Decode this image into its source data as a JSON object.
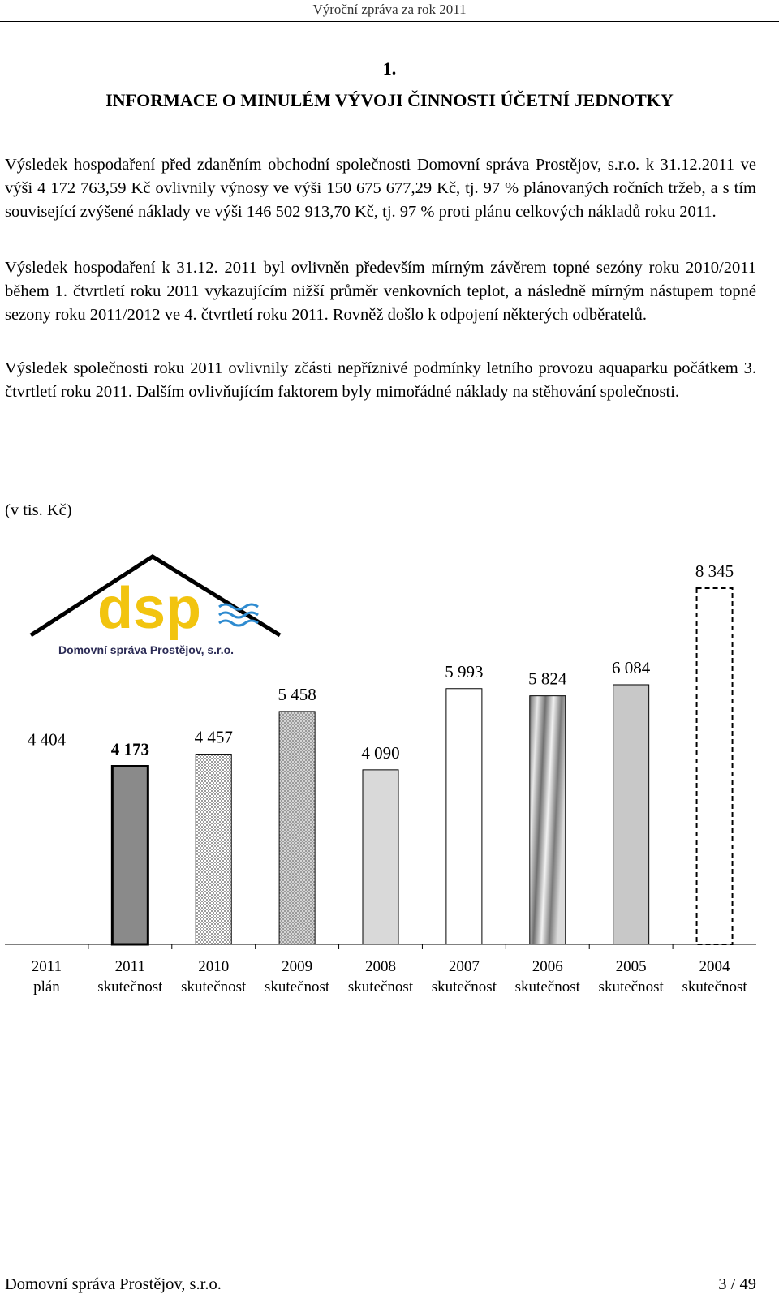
{
  "header": {
    "title": "Výroční zpráva za rok 2011"
  },
  "section": {
    "number": "1.",
    "title": "INFORMACE O MINULÉM VÝVOJI ČINNOSTI ÚČETNÍ JEDNOTKY"
  },
  "paragraphs": [
    "Výsledek hospodaření před zdaněním obchodní společnosti Domovní správa Prostějov, s.r.o. k 31.12.2011 ve výši 4 172 763,59 Kč ovlivnily výnosy ve výši 150 675 677,29 Kč, tj. 97 % plánovaných ročních tržeb, a s tím související zvýšené náklady ve výši 146 502 913,70 Kč, tj. 97 % proti plánu celkových nákladů roku 2011.",
    "Výsledek hospodaření k 31.12. 2011 byl ovlivněn především mírným závěrem topné sezóny roku 2010/2011 během 1. čtvrtletí roku 2011 vykazujícím nižší průměr venkovních teplot, a následně mírným nástupem topné sezony roku 2011/2012 ve 4. čtvrtletí roku 2011. Rovněž došlo k odpojení některých odběratelů.",
    "Výsledek společnosti roku 2011 ovlivnily zčásti nepříznivé podmínky letního provozu aquaparku počátkem 3. čtvrtletí roku 2011. Dalším ovlivňujícím faktorem byly mimořádné náklady na stěhování společnosti."
  ],
  "unit_label": "(v tis. Kč)",
  "logo": {
    "text": "dsp",
    "company": "Domovní správa Prostějov, s.r.o."
  },
  "colors": {
    "logo_yellow": "#f2c40f",
    "logo_blue": "#2e8bd0",
    "logo_roof": "#000000"
  },
  "chart_data": {
    "type": "bar",
    "categories": [
      [
        "2011",
        "plán"
      ],
      [
        "2011",
        "skutečnost"
      ],
      [
        "2010",
        "skutečnost"
      ],
      [
        "2009",
        "skutečnost"
      ],
      [
        "2008",
        "skutečnost"
      ],
      [
        "2007",
        "skutečnost"
      ],
      [
        "2006",
        "skutečnost"
      ],
      [
        "2005",
        "skutečnost"
      ],
      [
        "2004",
        "skutečnost"
      ]
    ],
    "values": [
      4404,
      4173,
      4457,
      5458,
      4090,
      5993,
      5824,
      6084,
      8345
    ],
    "value_labels": [
      "4 404",
      "4 173",
      "4 457",
      "5 458",
      "4 090",
      "5 993",
      "5 824",
      "6 084",
      "8 345"
    ],
    "styles": [
      "none",
      "dark-gray-bold",
      "dotted",
      "dotted-dark",
      "light-gray",
      "white",
      "gradient",
      "gray",
      "dashed-outline"
    ],
    "ylim": [
      0,
      8500
    ]
  },
  "footer": {
    "company": "Domovní správa Prostějov, s.r.o.",
    "page": "3 / 49"
  }
}
